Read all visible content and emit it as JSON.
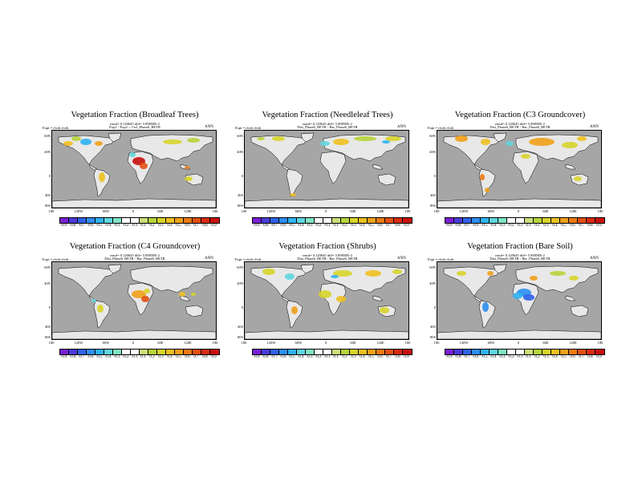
{
  "colorbar": {
    "colors": [
      "#7a1fd6",
      "#4a3ad8",
      "#2f62e8",
      "#2c8df0",
      "#2fb3f2",
      "#5fd6e0",
      "#7fe5c4",
      "#ffffff",
      "#ffffff",
      "#cbe07a",
      "#b7d43a",
      "#d8d42a",
      "#f0c020",
      "#f0a018",
      "#ec7a14",
      "#e25012",
      "#d82a10",
      "#c8100c"
    ],
    "labels": [
      "-0.9",
      "-0.8",
      "-0.7",
      "-0.6",
      "-0.5",
      "-0.4",
      "-0.3",
      "-0.2",
      "-0.1",
      "0.1",
      "0.2",
      "0.3",
      "0.4",
      "0.5",
      "0.6",
      "0.7",
      "0.8",
      "0.9"
    ]
  },
  "axes": {
    "lat_labels": [
      "60N",
      "40N",
      "0",
      "40S",
      "80S"
    ],
    "lon_labels": [
      "180",
      "120W",
      "60W",
      "0",
      "60E",
      "120E",
      "180"
    ]
  },
  "colors": {
    "ocean": "#a6a6a6",
    "land": "#e8e8e8"
  },
  "panels": [
    {
      "title": "Vegetation Fraction (Broadleaf Trees)",
      "meta1": "rmsd= 0.120645 diff= 5.89858E-2",
      "meta2": "Exp1 - Exp2 -- Ctrl_Phase6_BETR",
      "expt": "Expt = rfxrk rfxrk",
      "season": "ANN"
    },
    {
      "title": "Vegetation Fraction (Needleleaf Trees)",
      "meta1": "rmsd= 0.120645 diff= 5.89858E-2",
      "meta2": "Dist_Phase6_BETR - Bar_Phase6_BETR",
      "expt": "Expt = rfxrk rfxrk",
      "season": "ANN"
    },
    {
      "title": "Vegetation Fraction (C3 Groundcover)",
      "meta1": "rmsd= 0.120645 diff= 5.89858E-2",
      "meta2": "Dist_Phase6_BETR - Bar_Phase6_BETR",
      "expt": "Expt = rfxrk rfxrk",
      "season": "ANN"
    },
    {
      "title": "Vegetation Fraction (C4 Groundcover)",
      "meta1": "rmsd= 0.120645 diff= 5.89858E-2",
      "meta2": "Dist_Phase6_BETR - Bar_Phase6_BETR",
      "expt": "Expt = rfxrk rfxrk",
      "season": "ANN"
    },
    {
      "title": "Vegetation Fraction (Shrubs)",
      "meta1": "rmsd= 0.120645 diff= 5.89858E-2",
      "meta2": "Dist_Phase6_BETR - Bar_Phase6_BETR",
      "expt": "Expt = rfxrk rfxrk",
      "season": "ANN"
    },
    {
      "title": "Vegetation Fraction (Bare Soil)",
      "meta1": "rmsd= 0.120645 diff= 5.89858E-2",
      "meta2": "Dist_Phase6_BETR - Bar_Phase6_BETR",
      "expt": "Expt = rfxrk rfxrk",
      "season": "ANN"
    }
  ]
}
